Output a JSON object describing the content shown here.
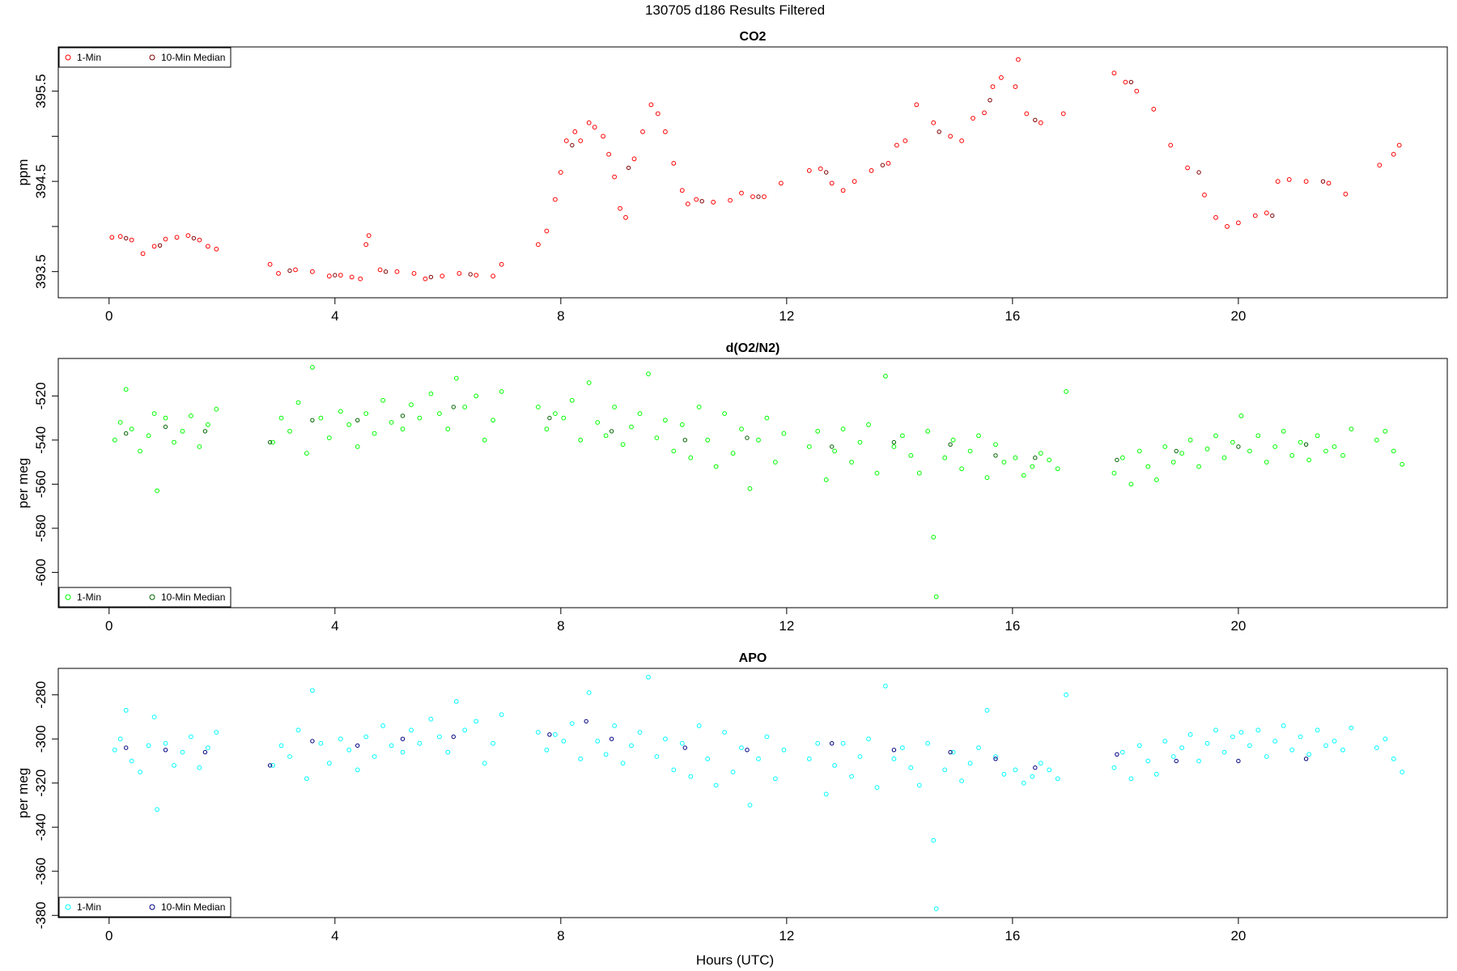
{
  "figure": {
    "title": "130705   d186   Results Filtered",
    "xlabel": "Hours (UTC)"
  },
  "chart_data": [
    {
      "type": "scatter",
      "title": "CO2",
      "ylabel": "ppm",
      "xlim": [
        -0.9,
        23.7
      ],
      "ylim": [
        393.21,
        395.99
      ],
      "xticks": [
        0,
        4,
        8,
        12,
        16,
        20
      ],
      "yticks": [
        393.5,
        394,
        394.5,
        395,
        395.5
      ],
      "ytick_labels": [
        "393.5",
        "",
        "394.5",
        "",
        "395.5"
      ],
      "legend": {
        "position": "top-left",
        "entries": [
          "1-Min",
          "10-Min Median"
        ]
      },
      "series": [
        {
          "name": "1-Min",
          "color": "#ff0000",
          "x": [
            0.05,
            0.2,
            0.4,
            0.6,
            0.8,
            1.0,
            1.2,
            1.4,
            1.6,
            1.75,
            1.9,
            2.85,
            3.0,
            3.3,
            3.6,
            3.9,
            4.1,
            4.3,
            4.45,
            4.55,
            4.6,
            4.8,
            5.1,
            5.4,
            5.6,
            5.9,
            6.2,
            6.5,
            6.8,
            6.95,
            7.6,
            7.75,
            7.9,
            8.0,
            8.1,
            8.25,
            8.35,
            8.5,
            8.6,
            8.75,
            8.85,
            8.95,
            9.05,
            9.15,
            9.3,
            9.45,
            9.6,
            9.72,
            9.85,
            10.0,
            10.15,
            10.25,
            10.4,
            10.7,
            11.0,
            11.2,
            11.4,
            11.6,
            11.9,
            12.4,
            12.6,
            12.8,
            13.0,
            13.2,
            13.5,
            13.8,
            13.95,
            14.1,
            14.3,
            14.6,
            14.9,
            15.1,
            15.3,
            15.5,
            15.65,
            15.8,
            16.05,
            16.1,
            16.25,
            16.5,
            16.9,
            17.8,
            18.0,
            18.2,
            18.5,
            18.8,
            19.1,
            19.4,
            19.6,
            19.8,
            20.0,
            20.3,
            20.5,
            20.7,
            20.9,
            21.2,
            21.6,
            21.9,
            22.5,
            22.75,
            22.85
          ],
          "values": [
            393.88,
            393.89,
            393.85,
            393.7,
            393.78,
            393.86,
            393.88,
            393.9,
            393.85,
            393.78,
            393.75,
            393.58,
            393.48,
            393.52,
            393.5,
            393.45,
            393.46,
            393.44,
            393.42,
            393.8,
            393.9,
            393.52,
            393.5,
            393.48,
            393.42,
            393.45,
            393.48,
            393.46,
            393.45,
            393.58,
            393.8,
            393.95,
            394.3,
            394.6,
            394.95,
            395.05,
            394.95,
            395.15,
            395.1,
            395.0,
            394.8,
            394.55,
            394.2,
            394.1,
            394.75,
            395.05,
            395.35,
            395.25,
            395.05,
            394.7,
            394.4,
            394.25,
            394.3,
            394.27,
            394.29,
            394.37,
            394.33,
            394.33,
            394.48,
            394.62,
            394.64,
            394.48,
            394.4,
            394.5,
            394.62,
            394.7,
            394.9,
            394.95,
            395.35,
            395.15,
            395.0,
            394.95,
            395.2,
            395.26,
            395.55,
            395.65,
            395.55,
            395.85,
            395.25,
            395.15,
            395.25,
            395.7,
            395.6,
            395.5,
            395.3,
            394.9,
            394.65,
            394.35,
            394.1,
            394.0,
            394.04,
            394.12,
            394.15,
            394.5,
            394.52,
            394.5,
            394.48,
            394.36,
            394.68,
            394.8,
            394.9
          ]
        },
        {
          "name": "10-Min Median",
          "color": "#800000",
          "x": [
            0.3,
            0.9,
            1.5,
            3.2,
            4.0,
            4.9,
            5.7,
            6.4,
            8.2,
            9.2,
            10.5,
            11.5,
            12.7,
            13.7,
            14.7,
            15.6,
            16.4,
            18.1,
            19.3,
            20.6,
            21.5
          ],
          "values": [
            393.87,
            393.79,
            393.87,
            393.51,
            393.46,
            393.5,
            393.44,
            393.47,
            394.9,
            394.65,
            394.28,
            394.33,
            394.6,
            394.68,
            395.05,
            395.4,
            395.18,
            395.6,
            394.6,
            394.12,
            394.5
          ]
        }
      ]
    },
    {
      "type": "scatter",
      "title": "d(O2/N2)",
      "ylabel": "per meg",
      "xlim": [
        -0.9,
        23.7
      ],
      "ylim": [
        -616,
        -503
      ],
      "xticks": [
        0,
        4,
        8,
        12,
        16,
        20
      ],
      "yticks": [
        -600,
        -580,
        -560,
        -540,
        -520
      ],
      "ytick_labels": [
        "-600",
        "-580",
        "-560",
        "-540",
        "-520"
      ],
      "legend": {
        "position": "bottom-left",
        "entries": [
          "1-Min",
          "10-Min Median"
        ]
      },
      "series": [
        {
          "name": "1-Min",
          "color": "#00ff00",
          "x": [
            0.1,
            0.2,
            0.3,
            0.4,
            0.55,
            0.7,
            0.8,
            0.85,
            1.0,
            1.15,
            1.3,
            1.45,
            1.6,
            1.75,
            1.9,
            2.9,
            3.05,
            3.2,
            3.35,
            3.5,
            3.6,
            3.75,
            3.9,
            4.1,
            4.25,
            4.4,
            4.55,
            4.7,
            4.85,
            5.0,
            5.2,
            5.35,
            5.5,
            5.7,
            5.85,
            6.0,
            6.15,
            6.3,
            6.5,
            6.65,
            6.8,
            6.95,
            7.6,
            7.75,
            7.9,
            8.05,
            8.2,
            8.35,
            8.5,
            8.65,
            8.8,
            8.95,
            9.1,
            9.25,
            9.4,
            9.55,
            9.7,
            9.85,
            10.0,
            10.15,
            10.3,
            10.45,
            10.6,
            10.75,
            10.9,
            11.05,
            11.2,
            11.35,
            11.5,
            11.65,
            11.8,
            11.95,
            12.4,
            12.55,
            12.7,
            12.85,
            13.0,
            13.15,
            13.3,
            13.45,
            13.6,
            13.75,
            13.9,
            14.05,
            14.2,
            14.35,
            14.5,
            14.6,
            14.65,
            14.8,
            14.95,
            15.1,
            15.25,
            15.4,
            15.55,
            15.7,
            15.85,
            16.05,
            16.2,
            16.35,
            16.5,
            16.65,
            16.8,
            16.95,
            17.8,
            17.95,
            18.1,
            18.25,
            18.4,
            18.55,
            18.7,
            18.85,
            19.0,
            19.15,
            19.3,
            19.45,
            19.6,
            19.75,
            19.9,
            20.05,
            20.2,
            20.35,
            20.5,
            20.65,
            20.8,
            20.95,
            21.1,
            21.25,
            21.4,
            21.55,
            21.7,
            21.85,
            22.0,
            22.45,
            22.6,
            22.75,
            22.9
          ],
          "values": [
            -540,
            -532,
            -517,
            -535,
            -545,
            -538,
            -528,
            -563,
            -530,
            -541,
            -536,
            -529,
            -543,
            -533,
            -526,
            -541,
            -530,
            -536,
            -523,
            -546,
            -507,
            -530,
            -539,
            -527,
            -533,
            -543,
            -528,
            -537,
            -522,
            -532,
            -535,
            -524,
            -530,
            -519,
            -528,
            -535,
            -512,
            -525,
            -520,
            -540,
            -531,
            -518,
            -525,
            -535,
            -528,
            -530,
            -522,
            -540,
            -514,
            -532,
            -538,
            -525,
            -542,
            -534,
            -528,
            -510,
            -539,
            -531,
            -545,
            -533,
            -548,
            -525,
            -540,
            -552,
            -528,
            -546,
            -535,
            -562,
            -540,
            -530,
            -550,
            -537,
            -543,
            -536,
            -558,
            -545,
            -535,
            -550,
            -541,
            -533,
            -555,
            -511,
            -543,
            -538,
            -547,
            -555,
            -536,
            -584,
            -611,
            -548,
            -540,
            -553,
            -545,
            -538,
            -557,
            -542,
            -550,
            -548,
            -556,
            -552,
            -546,
            -549,
            -553,
            -518,
            -555,
            -548,
            -560,
            -545,
            -552,
            -558,
            -543,
            -550,
            -546,
            -540,
            -552,
            -544,
            -538,
            -548,
            -541,
            -529,
            -545,
            -538,
            -550,
            -543,
            -536,
            -547,
            -541,
            -549,
            -538,
            -545,
            -543,
            -547,
            -535,
            -540,
            -536,
            -545,
            -551
          ]
        },
        {
          "name": "10-Min Median",
          "color": "#006400",
          "x": [
            0.3,
            1.0,
            1.7,
            2.85,
            3.6,
            4.4,
            5.2,
            6.1,
            7.8,
            8.9,
            10.2,
            11.3,
            12.8,
            13.9,
            14.9,
            15.7,
            16.4,
            17.85,
            18.9,
            20.0,
            21.2
          ],
          "values": [
            -537,
            -534,
            -536,
            -541,
            -531,
            -531,
            -529,
            -525,
            -530,
            -536,
            -540,
            -539,
            -543,
            -541,
            -542,
            -547,
            -548,
            -549,
            -545,
            -543,
            -542
          ]
        }
      ]
    },
    {
      "type": "scatter",
      "title": "APO",
      "ylabel": "per meg",
      "xlim": [
        -0.9,
        23.7
      ],
      "ylim": [
        -381,
        -268
      ],
      "xticks": [
        0,
        4,
        8,
        12,
        16,
        20
      ],
      "yticks": [
        -380,
        -360,
        -340,
        -320,
        -300,
        -280
      ],
      "ytick_labels": [
        "-380",
        "-360",
        "-340",
        "-320",
        "-300",
        "-280"
      ],
      "legend": {
        "position": "bottom-left",
        "entries": [
          "1-Min",
          "10-Min Median"
        ]
      },
      "series": [
        {
          "name": "1-Min",
          "color": "#00ffff",
          "x": [
            0.1,
            0.2,
            0.3,
            0.4,
            0.55,
            0.7,
            0.8,
            0.85,
            1.0,
            1.15,
            1.3,
            1.45,
            1.6,
            1.75,
            1.9,
            2.9,
            3.05,
            3.2,
            3.35,
            3.5,
            3.6,
            3.75,
            3.9,
            4.1,
            4.25,
            4.4,
            4.55,
            4.7,
            4.85,
            5.0,
            5.2,
            5.35,
            5.5,
            5.7,
            5.85,
            6.0,
            6.15,
            6.3,
            6.5,
            6.65,
            6.8,
            6.95,
            7.6,
            7.75,
            7.9,
            8.05,
            8.2,
            8.35,
            8.5,
            8.65,
            8.8,
            8.95,
            9.1,
            9.25,
            9.4,
            9.55,
            9.7,
            9.85,
            10.0,
            10.15,
            10.3,
            10.45,
            10.6,
            10.75,
            10.9,
            11.05,
            11.2,
            11.35,
            11.5,
            11.65,
            11.8,
            11.95,
            12.4,
            12.55,
            12.7,
            12.85,
            13.0,
            13.15,
            13.3,
            13.45,
            13.6,
            13.75,
            13.9,
            14.05,
            14.2,
            14.35,
            14.5,
            14.6,
            14.65,
            14.8,
            14.95,
            15.1,
            15.25,
            15.4,
            15.55,
            15.7,
            15.85,
            16.05,
            16.2,
            16.35,
            16.5,
            16.65,
            16.8,
            16.95,
            17.8,
            17.95,
            18.1,
            18.25,
            18.4,
            18.55,
            18.7,
            18.85,
            19.0,
            19.15,
            19.3,
            19.45,
            19.6,
            19.75,
            19.9,
            20.05,
            20.2,
            20.35,
            20.5,
            20.65,
            20.8,
            20.95,
            21.1,
            21.25,
            21.4,
            21.55,
            21.7,
            21.85,
            22.0,
            22.45,
            22.6,
            22.75,
            22.9
          ],
          "values": [
            -305,
            -300,
            -287,
            -310,
            -315,
            -303,
            -290,
            -332,
            -302,
            -312,
            -306,
            -299,
            -313,
            -304,
            -297,
            -312,
            -303,
            -308,
            -296,
            -318,
            -278,
            -302,
            -311,
            -300,
            -305,
            -314,
            -299,
            -308,
            -294,
            -303,
            -306,
            -296,
            -302,
            -291,
            -299,
            -306,
            -283,
            -296,
            -292,
            -311,
            -302,
            -289,
            -297,
            -305,
            -298,
            -301,
            -293,
            -309,
            -279,
            -301,
            -307,
            -294,
            -311,
            -303,
            -297,
            -272,
            -308,
            -300,
            -314,
            -302,
            -317,
            -294,
            -309,
            -321,
            -297,
            -315,
            -304,
            -330,
            -309,
            -299,
            -318,
            -305,
            -309,
            -302,
            -325,
            -312,
            -302,
            -317,
            -308,
            -300,
            -322,
            -276,
            -309,
            -304,
            -313,
            -321,
            -302,
            -346,
            -377,
            -314,
            -306,
            -319,
            -311,
            -304,
            -287,
            -308,
            -316,
            -314,
            -320,
            -317,
            -311,
            -314,
            -318,
            -280,
            -313,
            -306,
            -318,
            -303,
            -310,
            -316,
            -301,
            -308,
            -304,
            -298,
            -310,
            -302,
            -296,
            -306,
            -299,
            -297,
            -303,
            -296,
            -308,
            -301,
            -294,
            -305,
            -299,
            -307,
            -296,
            -303,
            -301,
            -305,
            -295,
            -304,
            -300,
            -309,
            -315
          ]
        },
        {
          "name": "10-Min Median",
          "color": "#000080",
          "x": [
            0.3,
            1.0,
            1.7,
            2.85,
            3.6,
            4.4,
            5.2,
            6.1,
            7.8,
            8.45,
            8.9,
            10.2,
            11.3,
            12.8,
            13.9,
            14.9,
            15.7,
            16.4,
            17.85,
            18.9,
            20.0,
            21.2
          ],
          "values": [
            -304,
            -305,
            -306,
            -312,
            -301,
            -303,
            -300,
            -299,
            -298,
            -292,
            -300,
            -304,
            -305,
            -302,
            -305,
            -306,
            -309,
            -313,
            -307,
            -310,
            -310,
            -309
          ]
        }
      ]
    }
  ]
}
